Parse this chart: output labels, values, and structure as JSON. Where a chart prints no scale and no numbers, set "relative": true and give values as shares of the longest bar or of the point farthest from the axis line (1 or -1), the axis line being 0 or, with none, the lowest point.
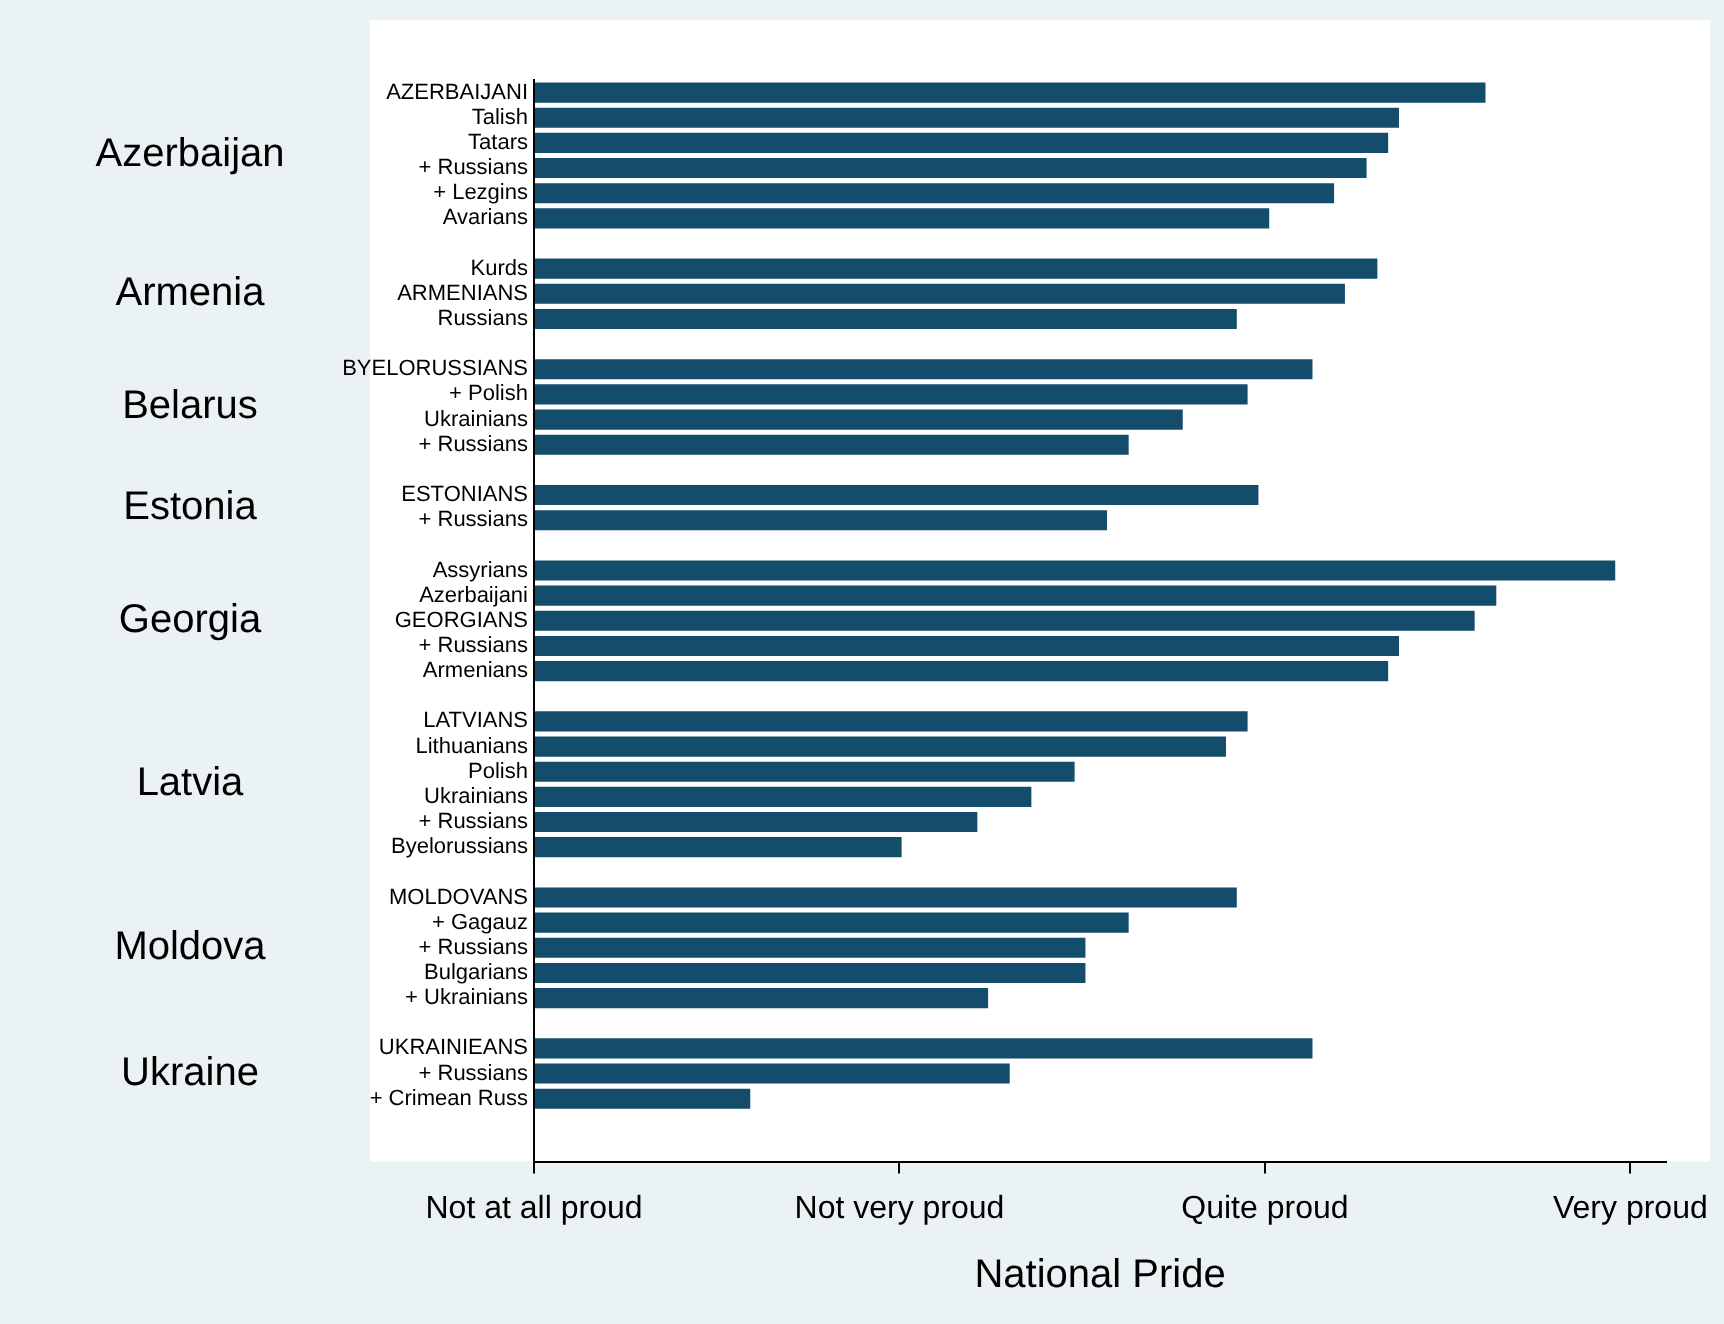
{
  "chart_data": {
    "type": "bar",
    "orientation": "horizontal",
    "xlabel": "National Pride",
    "relative": true,
    "categories": [
      "AZERBAIJANI",
      "Talish",
      "Tatars",
      "+ Russians",
      "+ Lezgins",
      "Avarians",
      null,
      "Kurds",
      "ARMENIANS",
      "Russians",
      null,
      "BYELORUSSIANS",
      "+ Polish",
      "Ukrainians",
      "+ Russians",
      null,
      "ESTONIANS",
      "+ Russians",
      null,
      "Assyrians",
      "Azerbaijani",
      "GEORGIANS",
      "+ Russians",
      "Armenians",
      null,
      "LATVIANS",
      "Lithuanians",
      "Polish",
      "Ukrainians",
      "+ Russians",
      "Byelorussians",
      null,
      "MOLDOVANS",
      "+ Gagauz",
      "+ Russians",
      "Bulgarians",
      "+ Ukrainians",
      null,
      "UKRAINIEANS",
      "+ Russians",
      "+ Crimean Russ",
      null,
      null
    ],
    "values": [
      0.88,
      0.8,
      0.79,
      0.77,
      0.74,
      0.68,
      null,
      0.78,
      0.75,
      0.65,
      null,
      0.72,
      0.66,
      0.6,
      0.55,
      null,
      0.67,
      0.53,
      null,
      1,
      0.89,
      0.87,
      0.8,
      0.79,
      null,
      0.66,
      0.64,
      0.5,
      0.46,
      0.41,
      0.34,
      null,
      0.65,
      0.55,
      0.51,
      0.51,
      0.42,
      null,
      0.72,
      0.44,
      0.2,
      null,
      null
    ],
    "color": "#144c6c",
    "legend": false,
    "annotations": [
      "Azerbaijan",
      "Armenia",
      "Belarus",
      "Estonia",
      "Georgia",
      "Latvia",
      "Moldova",
      "Ukraine",
      "Not at all proud",
      "Not very proud",
      "Quite proud",
      "Very proud"
    ]
  }
}
